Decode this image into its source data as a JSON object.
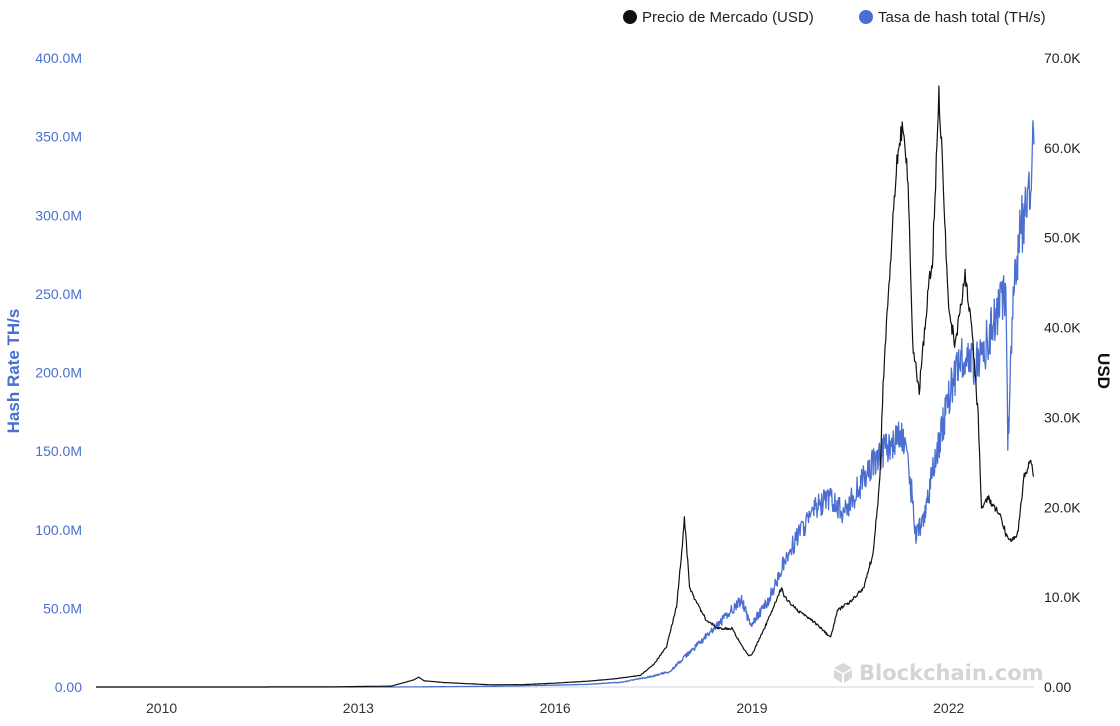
{
  "legend": {
    "price": {
      "label": "Precio de Mercado (USD)",
      "color": "#111111"
    },
    "hash": {
      "label": "Tasa de hash total (TH/s)",
      "color": "#4a6fd1"
    }
  },
  "watermark": "Blockchain.com",
  "chart_data": {
    "type": "line",
    "title": "",
    "x_ticks": [
      "2010",
      "2013",
      "2016",
      "2019",
      "2022"
    ],
    "x_range": [
      2009.0,
      2023.3
    ],
    "y_left": {
      "label": "Hash Rate TH/s",
      "ticks": [
        "0.00",
        "50.0M",
        "100.0M",
        "150.0M",
        "200.0M",
        "250.0M",
        "300.0M",
        "350.0M",
        "400.0M"
      ],
      "range": [
        0,
        400000000
      ]
    },
    "y_right": {
      "label": "USD",
      "ticks": [
        "0.00",
        "10.0K",
        "20.0K",
        "30.0K",
        "40.0K",
        "50.0K",
        "60.0K",
        "70.0K"
      ],
      "range": [
        0,
        70000
      ]
    },
    "grid": false,
    "legend_position": "top-right",
    "series": [
      {
        "name": "Precio de Mercado (USD)",
        "axis": "right",
        "color": "#111111",
        "x": [
          2009.0,
          2010.5,
          2011.5,
          2012.5,
          2013.5,
          2013.85,
          2013.92,
          2014.0,
          2014.3,
          2015.0,
          2015.5,
          2016.0,
          2016.5,
          2016.9,
          2017.3,
          2017.5,
          2017.7,
          2017.85,
          2017.93,
          2017.97,
          2018.05,
          2018.15,
          2018.3,
          2018.5,
          2018.7,
          2018.85,
          2018.95,
          2019.0,
          2019.25,
          2019.45,
          2019.5,
          2019.7,
          2019.95,
          2020.2,
          2020.3,
          2020.5,
          2020.7,
          2020.85,
          2020.95,
          2021.0,
          2021.1,
          2021.2,
          2021.3,
          2021.38,
          2021.45,
          2021.55,
          2021.7,
          2021.75,
          2021.85,
          2021.88,
          2022.0,
          2022.1,
          2022.25,
          2022.35,
          2022.45,
          2022.5,
          2022.6,
          2022.8,
          2022.87,
          2022.95,
          2023.05,
          2023.15,
          2023.25,
          2023.3
        ],
        "y": [
          0,
          1,
          5,
          10,
          100,
          800,
          1100,
          700,
          500,
          250,
          260,
          430,
          650,
          900,
          1300,
          2500,
          4500,
          9000,
          15000,
          19000,
          11000,
          9500,
          7500,
          6500,
          6500,
          4500,
          3500,
          3600,
          7500,
          11000,
          10000,
          8500,
          7200,
          5500,
          8500,
          9500,
          11000,
          15000,
          23000,
          34000,
          46000,
          58000,
          63000,
          56000,
          38000,
          33000,
          45000,
          47000,
          66000,
          62000,
          42000,
          38000,
          46000,
          40000,
          30000,
          20000,
          21000,
          19000,
          17000,
          16500,
          17000,
          23500,
          25000,
          23500
        ]
      },
      {
        "name": "Tasa de hash total (TH/s)",
        "axis": "left",
        "color": "#4a6fd1",
        "x": [
          2009.0,
          2012.0,
          2013.5,
          2014.0,
          2014.5,
          2015.0,
          2016.0,
          2016.5,
          2017.0,
          2017.5,
          2017.75,
          2018.0,
          2018.25,
          2018.5,
          2018.75,
          2018.85,
          2018.95,
          2019.0,
          2019.25,
          2019.5,
          2019.75,
          2020.0,
          2020.2,
          2020.4,
          2020.5,
          2020.65,
          2020.8,
          2021.0,
          2021.3,
          2021.45,
          2021.5,
          2021.6,
          2021.8,
          2022.0,
          2022.2,
          2022.4,
          2022.6,
          2022.75,
          2022.87,
          2022.9,
          2023.0,
          2023.1,
          2023.2,
          2023.25,
          2023.3
        ],
        "y": [
          0,
          0.02,
          0.01,
          0.1,
          0.3,
          0.4,
          1.2,
          1.7,
          3,
          7,
          10,
          20,
          30,
          40,
          52,
          55,
          42,
          40,
          55,
          80,
          100,
          115,
          120,
          110,
          118,
          128,
          140,
          150,
          160,
          120,
          95,
          105,
          145,
          185,
          210,
          205,
          220,
          240,
          250,
          155,
          255,
          290,
          310,
          330,
          345
        ]
      }
    ]
  }
}
